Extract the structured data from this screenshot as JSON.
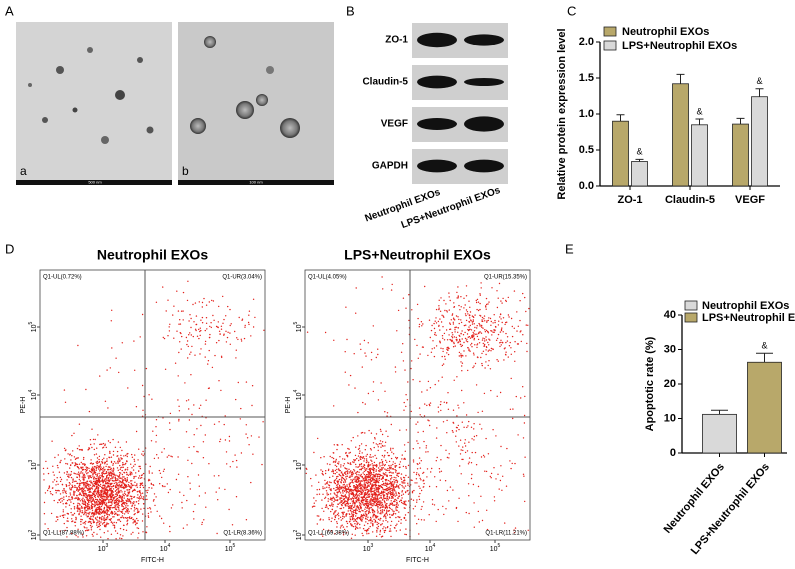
{
  "panel_labels": [
    "A",
    "B",
    "C",
    "D",
    "E"
  ],
  "tem": {
    "images": [
      {
        "label": "a",
        "scale": "500 nm"
      },
      {
        "label": "b",
        "scale": "100 nm"
      }
    ]
  },
  "western_blot": {
    "proteins": [
      "ZO-1",
      "Claudin-5",
      "VEGF",
      "GAPDH"
    ],
    "groups": [
      "Neutrophil EXOs",
      "LPS+Neutrophil EXOs"
    ]
  },
  "chart_data": [
    {
      "type": "bar",
      "ylabel": "Relative protein expression level",
      "categories": [
        "ZO-1",
        "Claudin-5",
        "VEGF"
      ],
      "series": [
        {
          "name": "Neutrophil EXOs",
          "color": "#b8a86a",
          "values": [
            0.9,
            1.42,
            0.86
          ],
          "errors": [
            0.09,
            0.13,
            0.08
          ]
        },
        {
          "name": "LPS+Neutrophil EXOs",
          "color": "#d9d9d9",
          "values": [
            0.34,
            0.85,
            1.24
          ],
          "errors": [
            0.03,
            0.08,
            0.11
          ],
          "annotations": [
            "&",
            "&",
            "&"
          ]
        }
      ],
      "ylim": [
        0,
        2
      ],
      "yticks": [
        {
          "value": 0,
          "label": "0.0"
        },
        0.5,
        {
          "value": 1,
          "label": "1.0"
        },
        1.5,
        {
          "value": 2,
          "label": "2.0"
        }
      ]
    },
    {
      "type": "bar",
      "ylabel": "Apoptotic rate (%)",
      "categories": [
        "Neutrophil EXOs",
        "LPS+Neutrophil EXOs"
      ],
      "colors": [
        "#d9d9d9",
        "#b8a86a"
      ],
      "values": [
        11.2,
        26.3
      ],
      "errors": [
        1.2,
        2.6
      ],
      "annotations": [
        null,
        "&"
      ],
      "ylim": [
        0,
        40
      ],
      "yticks": [
        0,
        10,
        20,
        30,
        40
      ]
    }
  ],
  "flow": {
    "plots": [
      {
        "title": "Neutrophil EXOs",
        "quadrants": [
          "Q1-UL(0.72%)",
          "Q1-UR(3.04%)",
          "Q1-LL(87.88%)",
          "Q1-LR(8.36%)"
        ]
      },
      {
        "title": "LPS+Neutrophil EXOs",
        "quadrants": [
          "Q1-UL(4.05%)",
          "Q1-UR(15.35%)",
          "Q1-LL(69.38%)",
          "Q1-LR(11.21%)"
        ]
      }
    ],
    "xlabel": "FITC-H",
    "ylabel": "PE-H",
    "xticks": [
      {
        "base": "10",
        "exp": "3"
      },
      {
        "base": "10",
        "exp": "4"
      },
      {
        "base": "10",
        "exp": "5"
      }
    ],
    "yticks": [
      {
        "base": "10",
        "exp": "2"
      },
      {
        "base": "10",
        "exp": "3"
      },
      {
        "base": "10",
        "exp": "4"
      },
      {
        "base": "10",
        "exp": "5"
      }
    ]
  }
}
